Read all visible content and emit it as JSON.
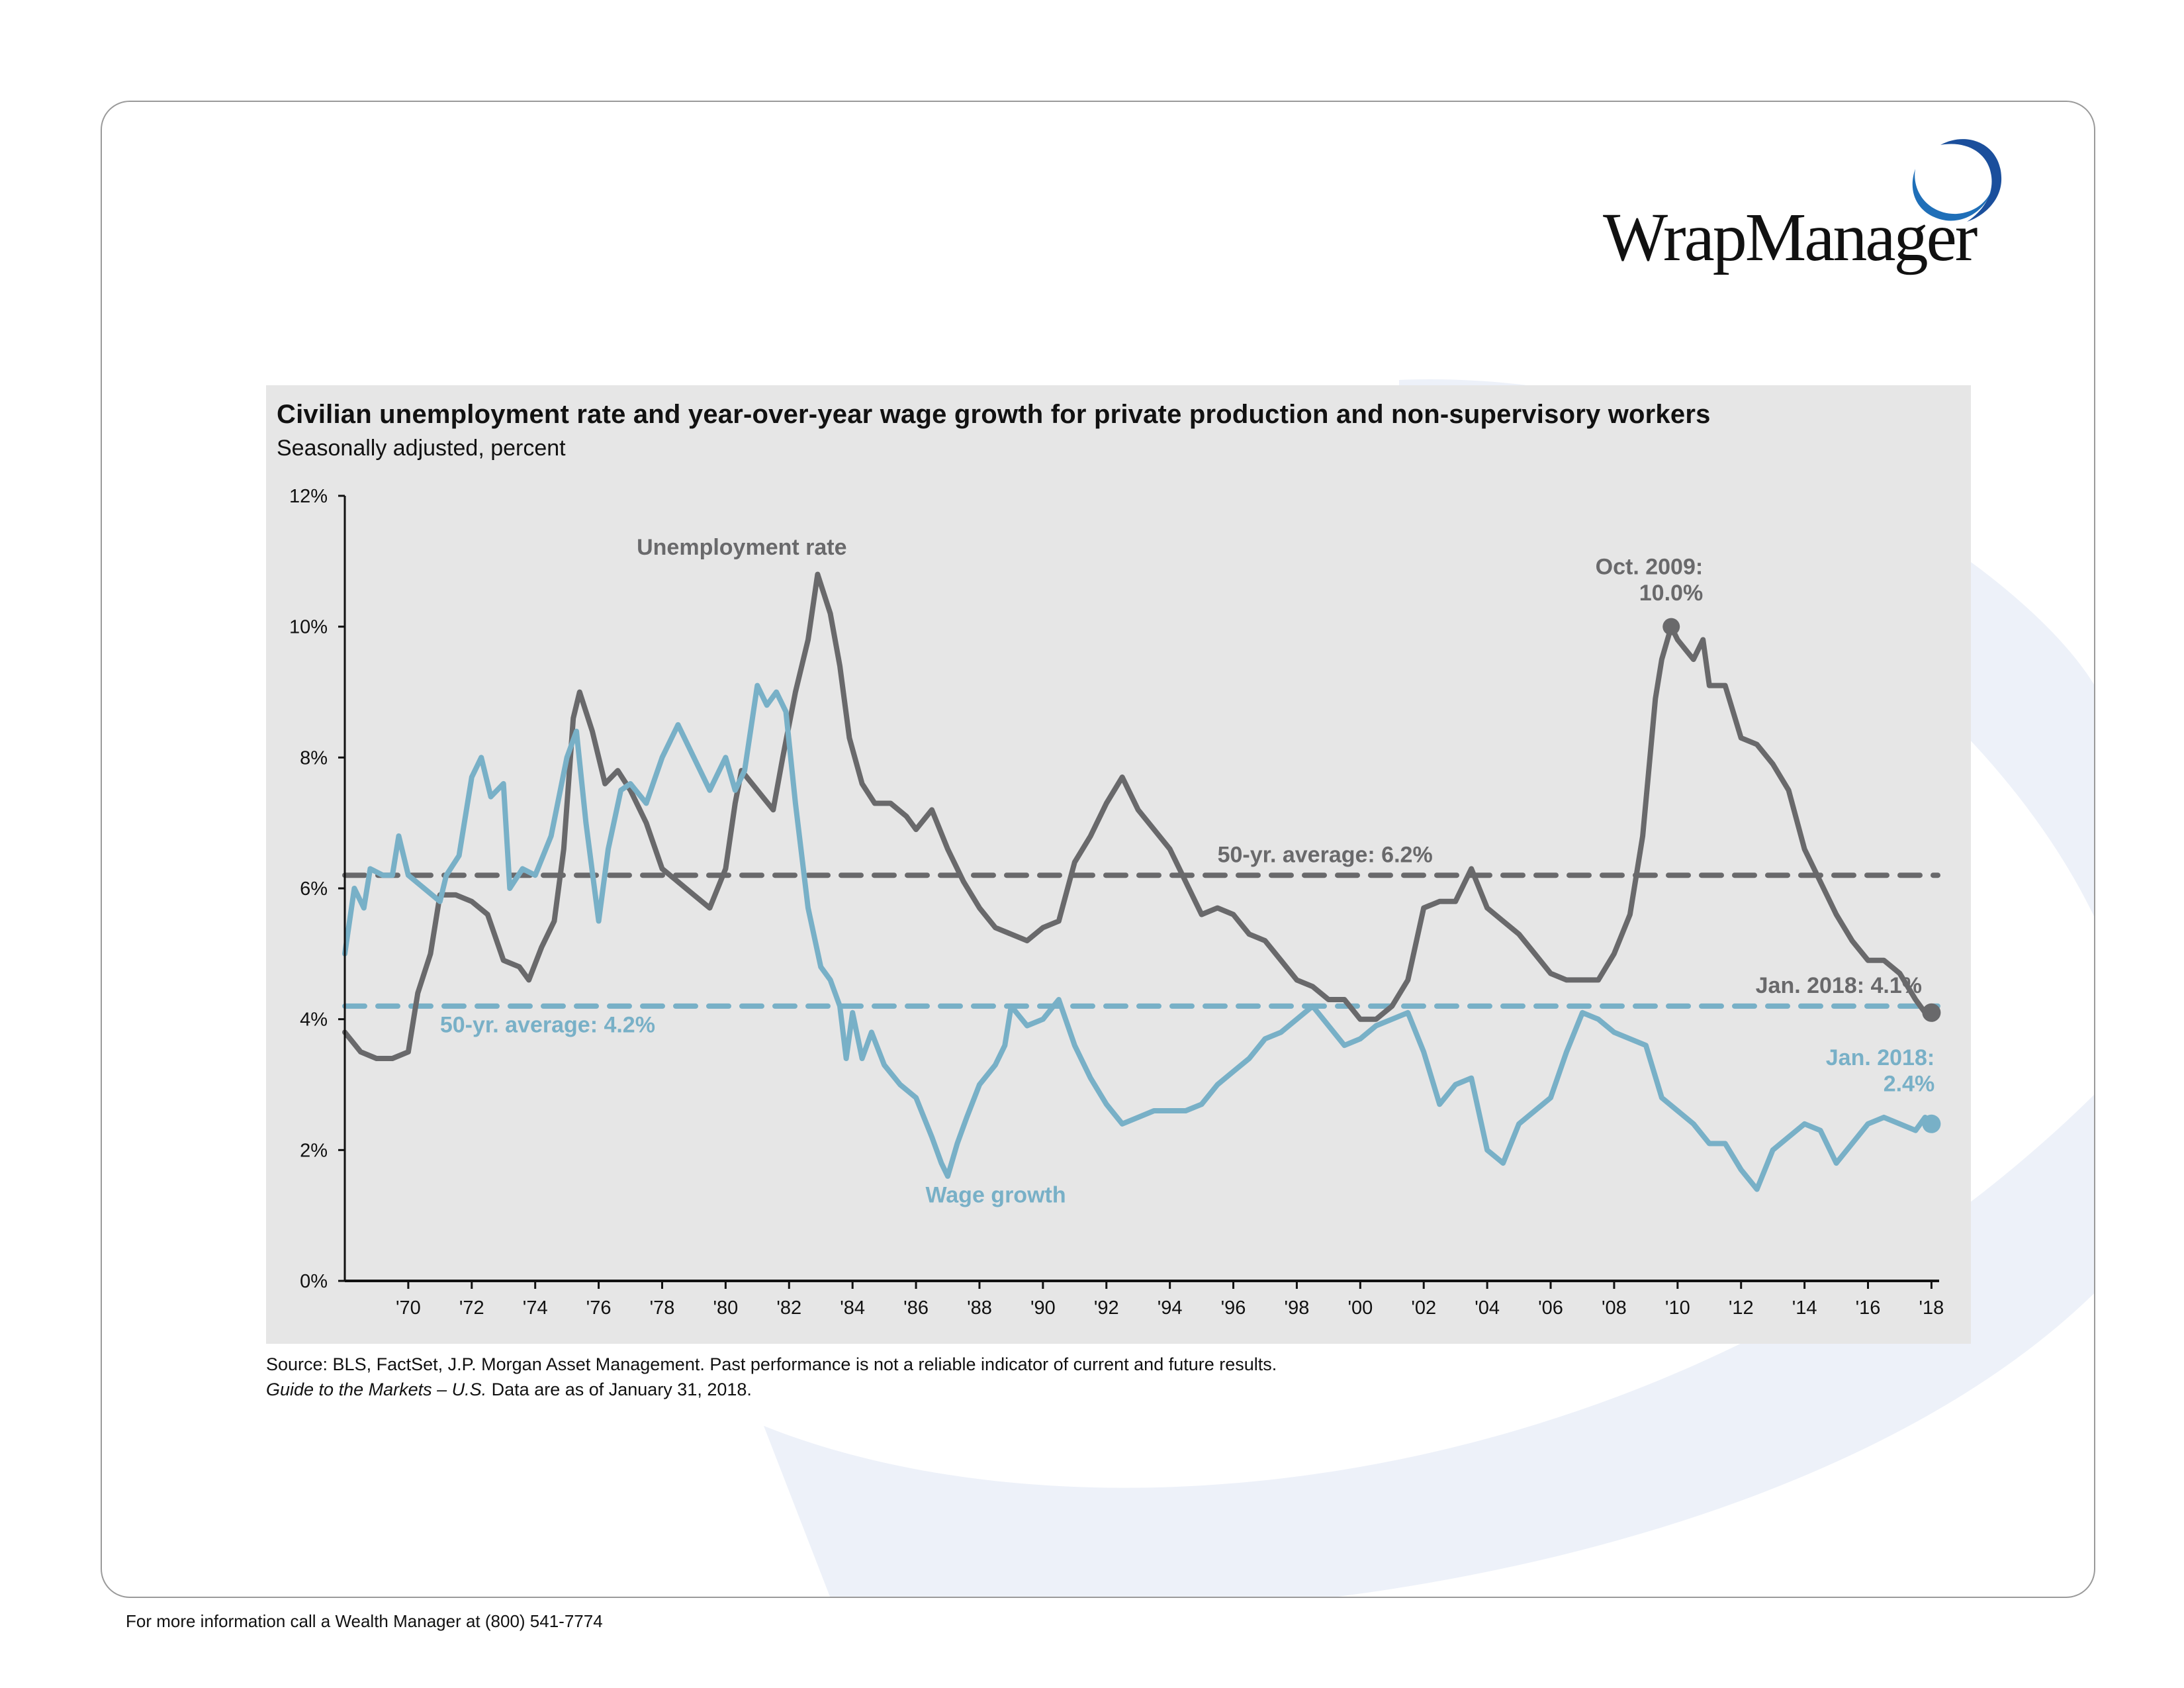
{
  "brand": {
    "name": "WrapManager",
    "ring_color": "#1f5fa8"
  },
  "footer": {
    "contact": "For more information call a Wealth Manager at (800) 541-7774"
  },
  "source": {
    "line1": "Source: BLS, FactSet, J.P. Morgan Asset Management. Past performance is not a reliable indicator of current and future results.",
    "line2_italic": "Guide to the Markets – U.S.",
    "line2_rest": " Data are as of January 31, 2018."
  },
  "colors": {
    "unemployment": "#69696b",
    "wage": "#78b0c7",
    "panel": "#e6e6e6",
    "swoosh": "#edf1f9"
  },
  "chart_data": {
    "type": "line",
    "title": "Civilian unemployment rate and year-over-year wage growth for private production and non-supervisory workers",
    "subtitle": "Seasonally adjusted, percent",
    "xlabel": "",
    "ylabel": "",
    "xlim": [
      1968.0,
      2018.2
    ],
    "ylim": [
      0,
      12
    ],
    "grid": false,
    "y_ticks": [
      0,
      2,
      4,
      6,
      8,
      10,
      12
    ],
    "y_tick_labels": [
      "0%",
      "2%",
      "4%",
      "6%",
      "8%",
      "10%",
      "12%"
    ],
    "x_ticks": [
      1970,
      1972,
      1974,
      1976,
      1978,
      1980,
      1982,
      1984,
      1986,
      1988,
      1990,
      1992,
      1994,
      1996,
      1998,
      2000,
      2002,
      2004,
      2006,
      2008,
      2010,
      2012,
      2014,
      2016,
      2018
    ],
    "x_tick_labels": [
      "'70",
      "'72",
      "'74",
      "'76",
      "'78",
      "'80",
      "'82",
      "'84",
      "'86",
      "'88",
      "'90",
      "'92",
      "'94",
      "'96",
      "'98",
      "'00",
      "'02",
      "'04",
      "'06",
      "'08",
      "'10",
      "'12",
      "'14",
      "'16",
      "'18"
    ],
    "series": [
      {
        "name": "Unemployment rate",
        "label": "Unemployment rate",
        "x": [
          1968.0,
          1968.5,
          1969.0,
          1969.5,
          1970.0,
          1970.3,
          1970.7,
          1971.0,
          1971.5,
          1972.0,
          1972.5,
          1973.0,
          1973.5,
          1973.8,
          1974.2,
          1974.6,
          1974.9,
          1975.2,
          1975.4,
          1975.8,
          1976.2,
          1976.6,
          1977.0,
          1977.5,
          1978.0,
          1978.5,
          1979.0,
          1979.5,
          1980.0,
          1980.3,
          1980.5,
          1981.0,
          1981.5,
          1981.8,
          1982.2,
          1982.6,
          1982.9,
          1983.3,
          1983.6,
          1983.9,
          1984.3,
          1984.7,
          1985.2,
          1985.7,
          1986.0,
          1986.5,
          1987.0,
          1987.5,
          1988.0,
          1988.5,
          1989.0,
          1989.5,
          1990.0,
          1990.5,
          1991.0,
          1991.5,
          1992.0,
          1992.5,
          1993.0,
          1993.5,
          1994.0,
          1994.5,
          1995.0,
          1995.5,
          1996.0,
          1996.5,
          1997.0,
          1997.5,
          1998.0,
          1998.5,
          1999.0,
          1999.5,
          2000.0,
          2000.5,
          2001.0,
          2001.5,
          2002.0,
          2002.5,
          2003.0,
          2003.5,
          2004.0,
          2004.5,
          2005.0,
          2005.5,
          2006.0,
          2006.5,
          2007.0,
          2007.5,
          2008.0,
          2008.5,
          2008.9,
          2009.3,
          2009.5,
          2009.8,
          2010.0,
          2010.5,
          2010.8,
          2011.0,
          2011.5,
          2012.0,
          2012.5,
          2013.0,
          2013.5,
          2014.0,
          2014.5,
          2015.0,
          2015.5,
          2016.0,
          2016.5,
          2017.0,
          2017.5,
          2017.8,
          2018.0
        ],
        "values": [
          3.8,
          3.5,
          3.4,
          3.4,
          3.5,
          4.4,
          5.0,
          5.9,
          5.9,
          5.8,
          5.6,
          4.9,
          4.8,
          4.6,
          5.1,
          5.5,
          6.6,
          8.6,
          9.0,
          8.4,
          7.6,
          7.8,
          7.5,
          7.0,
          6.3,
          6.1,
          5.9,
          5.7,
          6.3,
          7.3,
          7.8,
          7.5,
          7.2,
          8.0,
          9.0,
          9.8,
          10.8,
          10.2,
          9.4,
          8.3,
          7.6,
          7.3,
          7.3,
          7.1,
          6.9,
          7.2,
          6.6,
          6.1,
          5.7,
          5.4,
          5.3,
          5.2,
          5.4,
          5.5,
          6.4,
          6.8,
          7.3,
          7.7,
          7.2,
          6.9,
          6.6,
          6.1,
          5.6,
          5.7,
          5.6,
          5.3,
          5.2,
          4.9,
          4.6,
          4.5,
          4.3,
          4.3,
          4.0,
          4.0,
          4.2,
          4.6,
          5.7,
          5.8,
          5.8,
          6.3,
          5.7,
          5.5,
          5.3,
          5.0,
          4.7,
          4.6,
          4.6,
          4.6,
          5.0,
          5.6,
          6.8,
          8.9,
          9.5,
          10.0,
          9.8,
          9.5,
          9.8,
          9.1,
          9.1,
          8.3,
          8.2,
          7.9,
          7.5,
          6.6,
          6.1,
          5.6,
          5.2,
          4.9,
          4.9,
          4.7,
          4.3,
          4.1,
          4.1
        ],
        "average": 6.2,
        "average_label": "50-yr. average: 6.2%"
      },
      {
        "name": "Wage growth",
        "label": "Wage growth",
        "x": [
          1968.0,
          1968.3,
          1968.6,
          1968.8,
          1969.2,
          1969.5,
          1969.7,
          1970.0,
          1970.5,
          1971.0,
          1971.2,
          1971.6,
          1972.0,
          1972.3,
          1972.6,
          1973.0,
          1973.2,
          1973.6,
          1974.0,
          1974.5,
          1975.0,
          1975.3,
          1975.6,
          1976.0,
          1976.3,
          1976.7,
          1977.0,
          1977.5,
          1978.0,
          1978.5,
          1979.0,
          1979.5,
          1980.0,
          1980.3,
          1980.6,
          1981.0,
          1981.3,
          1981.6,
          1981.9,
          1982.2,
          1982.6,
          1983.0,
          1983.3,
          1983.6,
          1983.8,
          1984.0,
          1984.3,
          1984.6,
          1985.0,
          1985.5,
          1986.0,
          1986.5,
          1986.8,
          1987.0,
          1987.3,
          1987.6,
          1988.0,
          1988.5,
          1988.8,
          1989.0,
          1989.5,
          1990.0,
          1990.5,
          1991.0,
          1991.5,
          1992.0,
          1992.5,
          1993.0,
          1993.5,
          1994.0,
          1994.5,
          1995.0,
          1995.5,
          1996.0,
          1996.5,
          1997.0,
          1997.5,
          1998.0,
          1998.5,
          1999.0,
          1999.5,
          2000.0,
          2000.5,
          2001.0,
          2001.5,
          2002.0,
          2002.5,
          2003.0,
          2003.5,
          2004.0,
          2004.5,
          2005.0,
          2005.5,
          2006.0,
          2006.5,
          2007.0,
          2007.5,
          2008.0,
          2008.5,
          2009.0,
          2009.5,
          2010.0,
          2010.5,
          2011.0,
          2011.5,
          2012.0,
          2012.5,
          2013.0,
          2013.5,
          2014.0,
          2014.5,
          2015.0,
          2015.5,
          2016.0,
          2016.5,
          2017.0,
          2017.5,
          2017.8,
          2018.0
        ],
        "values": [
          5.0,
          6.0,
          5.7,
          6.3,
          6.2,
          6.2,
          6.8,
          6.2,
          6.0,
          5.8,
          6.2,
          6.5,
          7.7,
          8.0,
          7.4,
          7.6,
          6.0,
          6.3,
          6.2,
          6.8,
          8.0,
          8.4,
          7.0,
          5.5,
          6.6,
          7.5,
          7.6,
          7.3,
          8.0,
          8.5,
          8.0,
          7.5,
          8.0,
          7.5,
          7.8,
          9.1,
          8.8,
          9.0,
          8.7,
          7.3,
          5.7,
          4.8,
          4.6,
          4.2,
          3.4,
          4.1,
          3.4,
          3.8,
          3.3,
          3.0,
          2.8,
          2.2,
          1.8,
          1.6,
          2.1,
          2.5,
          3.0,
          3.3,
          3.6,
          4.2,
          3.9,
          4.0,
          4.3,
          3.6,
          3.1,
          2.7,
          2.4,
          2.5,
          2.6,
          2.6,
          2.6,
          2.7,
          3.0,
          3.2,
          3.4,
          3.7,
          3.8,
          4.0,
          4.2,
          3.9,
          3.6,
          3.7,
          3.9,
          4.0,
          4.1,
          3.5,
          2.7,
          3.0,
          3.1,
          2.0,
          1.8,
          2.4,
          2.6,
          2.8,
          3.5,
          4.1,
          4.0,
          3.8,
          3.7,
          3.6,
          2.8,
          2.6,
          2.4,
          2.1,
          2.1,
          1.7,
          1.4,
          2.0,
          2.2,
          2.4,
          2.3,
          1.8,
          2.1,
          2.4,
          2.5,
          2.4,
          2.3,
          2.5,
          2.4
        ],
        "average": 4.2,
        "average_label": "50-yr. average: 4.2%"
      }
    ],
    "annotations": [
      {
        "name": "unemployment-peak",
        "series": "Unemployment rate",
        "x": 2009.8,
        "y": 10.0,
        "line1": "Oct. 2009:",
        "line2": "10.0%"
      },
      {
        "name": "unemployment-latest",
        "series": "Unemployment rate",
        "x": 2018.0,
        "y": 4.1,
        "line1": "Jan. 2018: 4.1%"
      },
      {
        "name": "wage-latest",
        "series": "Wage growth",
        "x": 2018.0,
        "y": 2.4,
        "line1": "Jan. 2018:",
        "line2": "2.4%"
      }
    ]
  }
}
